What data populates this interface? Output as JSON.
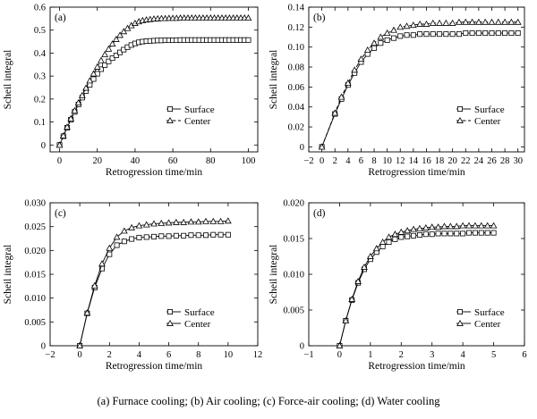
{
  "caption": "(a)   Furnace cooling; (b) Air cooling; (c) Force-air cooling; (d) Water cooling",
  "chart_data": [
    {
      "type": "scatter",
      "panel_label": "(a)",
      "xlabel": "Retrogression time/min",
      "ylabel": "Scheil integral",
      "xlim": [
        -5,
        105
      ],
      "ylim": [
        -0.03,
        0.6
      ],
      "xticks": [
        0,
        20,
        40,
        60,
        80,
        100
      ],
      "xtick_labels": [
        "0",
        "20",
        "40",
        "60",
        "80",
        "100"
      ],
      "yticks": [
        0,
        0.1,
        0.2,
        0.3,
        0.4,
        0.5,
        0.6
      ],
      "ytick_labels": [
        "0",
        "0.1",
        "0.2",
        "0.3",
        "0.4",
        "0.5",
        "0.6"
      ],
      "legend": {
        "position": "center-right",
        "entries": [
          "Surface",
          "Center"
        ]
      },
      "series": [
        {
          "name": "Surface",
          "marker": "square",
          "line": "solid",
          "x": [
            0,
            2,
            4,
            6,
            8,
            10,
            12,
            14,
            16,
            18,
            20,
            22,
            24,
            26,
            28,
            30,
            32,
            34,
            36,
            38,
            40,
            42,
            44,
            46,
            48,
            50,
            52,
            54,
            56,
            58,
            60,
            62,
            64,
            66,
            68,
            70,
            72,
            74,
            76,
            78,
            80,
            82,
            84,
            86,
            88,
            90,
            92,
            94,
            96,
            98,
            100
          ],
          "y": [
            0,
            0.038,
            0.075,
            0.11,
            0.144,
            0.176,
            0.206,
            0.235,
            0.262,
            0.287,
            0.31,
            0.33,
            0.348,
            0.364,
            0.378,
            0.39,
            0.403,
            0.415,
            0.426,
            0.435,
            0.442,
            0.447,
            0.45,
            0.452,
            0.453,
            0.454,
            0.455,
            0.455,
            0.456,
            0.456,
            0.456,
            0.456,
            0.457,
            0.457,
            0.457,
            0.457,
            0.457,
            0.457,
            0.457,
            0.457,
            0.457,
            0.457,
            0.457,
            0.457,
            0.457,
            0.457,
            0.457,
            0.457,
            0.457,
            0.457,
            0.457
          ]
        },
        {
          "name": "Center",
          "marker": "triangle",
          "line": "dashed",
          "x": [
            0,
            2,
            4,
            6,
            8,
            10,
            12,
            14,
            16,
            18,
            20,
            22,
            24,
            26,
            28,
            30,
            32,
            34,
            36,
            38,
            40,
            42,
            44,
            46,
            48,
            50,
            52,
            54,
            56,
            58,
            60,
            62,
            64,
            66,
            68,
            70,
            72,
            74,
            76,
            78,
            80,
            82,
            84,
            86,
            88,
            90,
            92,
            94,
            96,
            98,
            100
          ],
          "y": [
            0,
            0.04,
            0.078,
            0.115,
            0.15,
            0.184,
            0.216,
            0.248,
            0.28,
            0.31,
            0.34,
            0.368,
            0.394,
            0.418,
            0.44,
            0.46,
            0.478,
            0.494,
            0.508,
            0.52,
            0.53,
            0.537,
            0.542,
            0.545,
            0.547,
            0.549,
            0.55,
            0.551,
            0.551,
            0.552,
            0.552,
            0.552,
            0.553,
            0.553,
            0.553,
            0.553,
            0.553,
            0.553,
            0.553,
            0.553,
            0.553,
            0.553,
            0.553,
            0.553,
            0.553,
            0.553,
            0.553,
            0.553,
            0.553,
            0.553,
            0.553
          ]
        }
      ]
    },
    {
      "type": "scatter",
      "panel_label": "(b)",
      "xlabel": "Retrogression time/min",
      "ylabel": "Scheil integral",
      "xlim": [
        -2,
        31
      ],
      "ylim": [
        -0.005,
        0.14
      ],
      "xticks": [
        -2,
        0,
        2,
        4,
        6,
        8,
        10,
        12,
        14,
        16,
        18,
        20,
        22,
        24,
        26,
        28,
        30
      ],
      "xtick_labels": [
        "−2",
        "0",
        "2",
        "4",
        "6",
        "8",
        "10",
        "12",
        "14",
        "16",
        "18",
        "20",
        "22",
        "24",
        "26",
        "28",
        "30"
      ],
      "yticks": [
        0,
        0.02,
        0.04,
        0.06,
        0.08,
        0.1,
        0.12,
        0.14
      ],
      "ytick_labels": [
        "0",
        "0.02",
        "0.04",
        "0.06",
        "0.08",
        "0.10",
        "0.12",
        "0.14"
      ],
      "legend": {
        "position": "center-right",
        "entries": [
          "Surface",
          "Center"
        ]
      },
      "series": [
        {
          "name": "Surface",
          "marker": "square",
          "line": "solid",
          "x": [
            0,
            2,
            3,
            4,
            5,
            6,
            7,
            8,
            9,
            10,
            11,
            12,
            13,
            14,
            15,
            16,
            17,
            18,
            19,
            20,
            21,
            22,
            23,
            24,
            25,
            26,
            27,
            28,
            29,
            30
          ],
          "y": [
            0,
            0.033,
            0.048,
            0.062,
            0.074,
            0.085,
            0.093,
            0.099,
            0.104,
            0.107,
            0.109,
            0.111,
            0.112,
            0.112,
            0.113,
            0.113,
            0.113,
            0.113,
            0.113,
            0.113,
            0.113,
            0.114,
            0.114,
            0.114,
            0.114,
            0.114,
            0.114,
            0.114,
            0.114,
            0.114
          ]
        },
        {
          "name": "Center",
          "marker": "triangle",
          "line": "dashed",
          "x": [
            0,
            2,
            3,
            4,
            5,
            6,
            7,
            8,
            9,
            10,
            11,
            12,
            13,
            14,
            15,
            16,
            17,
            18,
            19,
            20,
            21,
            22,
            23,
            24,
            25,
            26,
            27,
            28,
            29,
            30
          ],
          "y": [
            0,
            0.034,
            0.05,
            0.064,
            0.077,
            0.088,
            0.097,
            0.104,
            0.11,
            0.114,
            0.117,
            0.12,
            0.121,
            0.122,
            0.123,
            0.123,
            0.124,
            0.124,
            0.124,
            0.124,
            0.125,
            0.125,
            0.125,
            0.125,
            0.125,
            0.125,
            0.125,
            0.125,
            0.125,
            0.125
          ]
        }
      ]
    },
    {
      "type": "scatter",
      "panel_label": "(c)",
      "xlabel": "Retrogression time/min",
      "ylabel": "Scheil integral",
      "xlim": [
        -2,
        12
      ],
      "ylim": [
        0,
        0.03
      ],
      "xticks": [
        -2,
        0,
        2,
        4,
        6,
        8,
        10,
        12
      ],
      "xtick_labels": [
        "−2",
        "0",
        "2",
        "4",
        "6",
        "8",
        "10",
        "12"
      ],
      "yticks": [
        0,
        0.005,
        0.01,
        0.015,
        0.02,
        0.025,
        0.03
      ],
      "ytick_labels": [
        "0",
        "0.005",
        "0.010",
        "0.015",
        "0.020",
        "0.025",
        "0.030"
      ],
      "legend": {
        "position": "lower-right",
        "entries": [
          "Surface",
          "Center"
        ]
      },
      "series": [
        {
          "name": "Surface",
          "marker": "square",
          "line": "solid",
          "x": [
            0,
            0.5,
            1,
            1.5,
            2,
            2.5,
            3,
            3.5,
            4,
            4.5,
            5,
            5.5,
            6,
            6.5,
            7,
            7.5,
            8,
            8.5,
            9,
            9.5,
            10
          ],
          "y": [
            0,
            0.0068,
            0.0122,
            0.0162,
            0.0192,
            0.0211,
            0.0219,
            0.0224,
            0.0227,
            0.0228,
            0.0229,
            0.023,
            0.023,
            0.0231,
            0.0231,
            0.0232,
            0.0232,
            0.0232,
            0.0233,
            0.0233,
            0.0233
          ]
        },
        {
          "name": "Center",
          "marker": "triangle",
          "line": "solid",
          "x": [
            0,
            0.5,
            1,
            1.5,
            2,
            2.5,
            3,
            3.5,
            4,
            4.5,
            5,
            5.5,
            6,
            6.5,
            7,
            7.5,
            8,
            8.5,
            9,
            9.5,
            10
          ],
          "y": [
            0,
            0.0069,
            0.0126,
            0.0172,
            0.0205,
            0.0228,
            0.0241,
            0.0248,
            0.0252,
            0.0254,
            0.0256,
            0.0257,
            0.0258,
            0.0259,
            0.0259,
            0.026,
            0.026,
            0.0261,
            0.0261,
            0.0261,
            0.0262
          ]
        }
      ]
    },
    {
      "type": "scatter",
      "panel_label": "(d)",
      "xlabel": "Retrogression time/min",
      "ylabel": "Scheil integral",
      "xlim": [
        -1,
        6
      ],
      "ylim": [
        0,
        0.02
      ],
      "xticks": [
        -1,
        0,
        1,
        2,
        3,
        4,
        5,
        6
      ],
      "xtick_labels": [
        "−1",
        "0",
        "1",
        "2",
        "3",
        "4",
        "5",
        "6"
      ],
      "yticks": [
        0,
        0.005,
        0.01,
        0.015,
        0.02
      ],
      "ytick_labels": [
        "0",
        "0.005",
        "0.010",
        "0.015",
        "0.020"
      ],
      "legend": {
        "position": "lower-right",
        "entries": [
          "Surface",
          "Center"
        ]
      },
      "series": [
        {
          "name": "Surface",
          "marker": "square",
          "line": "solid",
          "x": [
            0,
            0.2,
            0.4,
            0.6,
            0.8,
            1,
            1.2,
            1.4,
            1.6,
            1.8,
            2,
            2.2,
            2.4,
            2.6,
            2.8,
            3,
            3.2,
            3.4,
            3.6,
            3.8,
            4,
            4.2,
            4.4,
            4.6,
            4.8,
            5
          ],
          "y": [
            0,
            0.0035,
            0.0064,
            0.0088,
            0.0107,
            0.0121,
            0.0131,
            0.0139,
            0.0145,
            0.0149,
            0.0152,
            0.0153,
            0.0154,
            0.0155,
            0.0156,
            0.0156,
            0.0157,
            0.0157,
            0.0157,
            0.0157,
            0.0157,
            0.0158,
            0.0158,
            0.0158,
            0.0158,
            0.0158
          ]
        },
        {
          "name": "Center",
          "marker": "triangle",
          "line": "solid",
          "x": [
            0,
            0.2,
            0.4,
            0.6,
            0.8,
            1,
            1.2,
            1.4,
            1.6,
            1.8,
            2,
            2.2,
            2.4,
            2.6,
            2.8,
            3,
            3.2,
            3.4,
            3.6,
            3.8,
            4,
            4.2,
            4.4,
            4.6,
            4.8,
            5
          ],
          "y": [
            0,
            0.0035,
            0.0065,
            0.009,
            0.011,
            0.0125,
            0.0136,
            0.0145,
            0.0152,
            0.0156,
            0.0159,
            0.0161,
            0.0163,
            0.0164,
            0.0165,
            0.0166,
            0.0166,
            0.0167,
            0.0167,
            0.0167,
            0.0168,
            0.0168,
            0.0168,
            0.0168,
            0.0168,
            0.0168
          ]
        }
      ]
    }
  ]
}
